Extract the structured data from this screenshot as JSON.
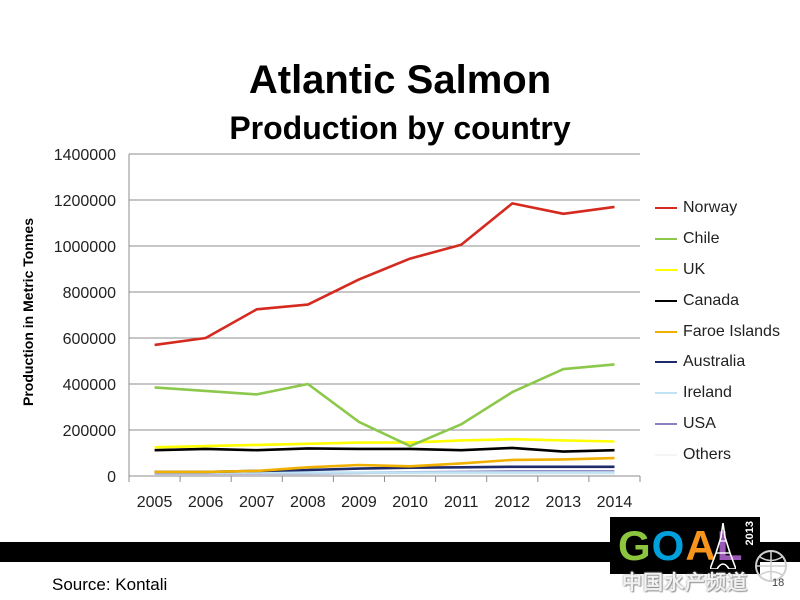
{
  "slide": {
    "title_line1": "Atlantic Salmon",
    "title_line2": "Production by country",
    "source": "Source: Kontali",
    "page_number": "18"
  },
  "logo": {
    "letters": [
      "G",
      "O",
      "A",
      "L"
    ],
    "year": "2013"
  },
  "watermark": {
    "text": "中国水产频道"
  },
  "chart_data": {
    "type": "line",
    "title": "",
    "xlabel": "",
    "ylabel": "Production in Metric Tonnes",
    "ylim": [
      0,
      1400000
    ],
    "yticks": [
      "0",
      "200000",
      "400000",
      "600000",
      "800000",
      "1000000",
      "1200000",
      "1400000"
    ],
    "categories": [
      "2005",
      "2006",
      "2007",
      "2008",
      "2009",
      "2010",
      "2011",
      "2012",
      "2013",
      "2014"
    ],
    "grid": "horizontal",
    "legend_position": "right",
    "series": [
      {
        "name": "Norway",
        "color": "#d42a1f",
        "values": [
          570000,
          600000,
          725000,
          745000,
          855000,
          945000,
          1005000,
          1185000,
          1140000,
          1170000
        ]
      },
      {
        "name": "Chile",
        "color": "#8cc84b",
        "values": [
          385000,
          370000,
          355000,
          400000,
          235000,
          130000,
          225000,
          365000,
          465000,
          485000
        ]
      },
      {
        "name": "UK",
        "color": "#ffff00",
        "values": [
          125000,
          130000,
          135000,
          140000,
          145000,
          145000,
          155000,
          160000,
          155000,
          150000
        ]
      },
      {
        "name": "Canada",
        "color": "#000000",
        "values": [
          112000,
          118000,
          112000,
          120000,
          118000,
          118000,
          112000,
          122000,
          106000,
          112000
        ]
      },
      {
        "name": "Faroe Islands",
        "color": "#f0b000",
        "values": [
          18000,
          18000,
          22000,
          38000,
          48000,
          42000,
          55000,
          70000,
          72000,
          78000
        ]
      },
      {
        "name": "Australia",
        "color": "#1f2a6b",
        "values": [
          18000,
          18000,
          22000,
          26000,
          32000,
          36000,
          38000,
          40000,
          40000,
          40000
        ]
      },
      {
        "name": "Ireland",
        "color": "#bfe3f3",
        "values": [
          15000,
          15000,
          15000,
          15000,
          15000,
          15000,
          15000,
          15000,
          15000,
          15000
        ]
      },
      {
        "name": "USA",
        "color": "#8a7fbf",
        "values": [
          12000,
          12000,
          12000,
          12000,
          14000,
          16000,
          18000,
          20000,
          20000,
          20000
        ]
      },
      {
        "name": "Others",
        "color": "#f5f5f5",
        "values": [
          8000,
          8000,
          8000,
          8000,
          8000,
          8000,
          8000,
          8000,
          8000,
          8000
        ]
      }
    ]
  }
}
